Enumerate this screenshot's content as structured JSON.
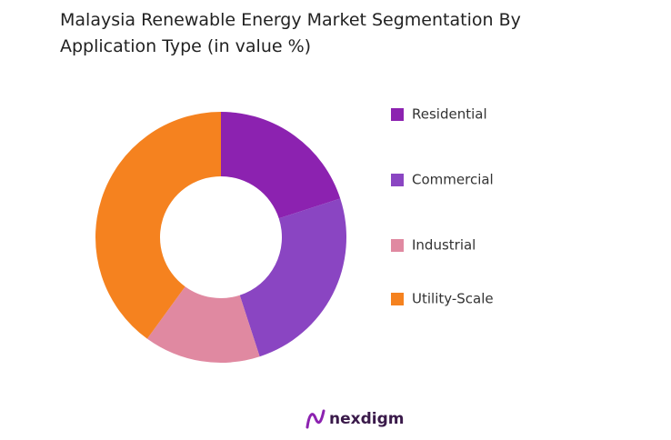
{
  "chart_data": {
    "type": "donut",
    "title": "Malaysia Renewable Energy Market Segmentation By Application Type (in value %)",
    "categories": [
      "Residential",
      "Commercial",
      "Industrial",
      "Utility-Scale"
    ],
    "values": [
      20,
      25,
      15,
      40
    ],
    "colors": [
      "#8c22b0",
      "#8a45c2",
      "#e089a1",
      "#f5821f"
    ],
    "legend": "right"
  },
  "logo": {
    "text": "nexdigm"
  }
}
